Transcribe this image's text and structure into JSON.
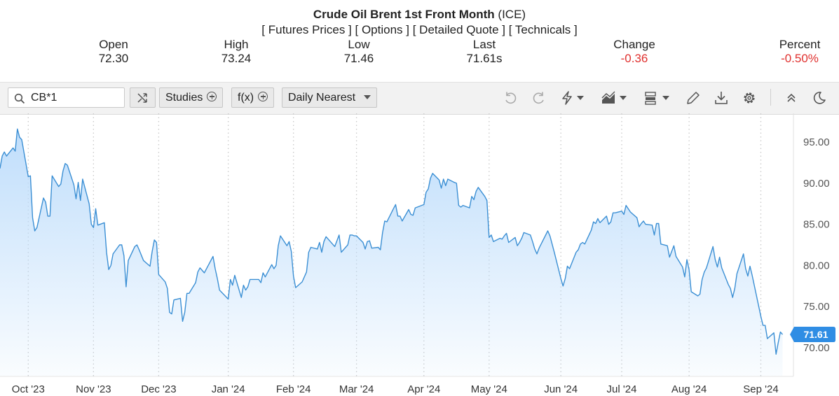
{
  "header": {
    "title_bold": "Crude Oil Brent 1st Front Month",
    "title_suffix": "(ICE)",
    "links": [
      "Futures Prices",
      "Options",
      "Detailed Quote",
      "Technicals"
    ]
  },
  "stats": [
    {
      "label": "Open",
      "value": "72.30",
      "negative": false
    },
    {
      "label": "High",
      "value": "73.24",
      "negative": false
    },
    {
      "label": "Low",
      "value": "71.46",
      "negative": false
    },
    {
      "label": "Last",
      "value": "71.61s",
      "negative": false
    },
    {
      "label": "Change",
      "value": "-0.36",
      "negative": true
    },
    {
      "label": "Percent",
      "value": "-0.50%",
      "negative": true
    }
  ],
  "toolbar": {
    "symbol": "CB*1",
    "studies_label": "Studies",
    "fx_label": "f(x)",
    "interval_label": "Daily Nearest",
    "icons": [
      "undo-icon",
      "redo-icon",
      "lightning-icon",
      "chart-type-icon",
      "template-icon",
      "pencil-icon",
      "download-icon",
      "settings-icon",
      "collapse-icon",
      "dark-mode-icon"
    ]
  },
  "colors": {
    "line": "#3b8fd4",
    "fill": "#cfe5fa",
    "last_badge": "#2f8de4",
    "negative": "#e0312f"
  },
  "chart_data": {
    "type": "area",
    "y_axis_side": "right",
    "ylim": [
      66.5,
      98.5
    ],
    "yticks": [
      70,
      75,
      80,
      85,
      90,
      95
    ],
    "ytick_labels": [
      "70.00",
      "75.00",
      "80.00",
      "85.00",
      "90.00",
      "95.00"
    ],
    "xlim": [
      "2023-09-19",
      "2024-09-18"
    ],
    "xticks": [
      {
        "date": "2023-10-02",
        "label": "Oct '23"
      },
      {
        "date": "2023-11-01",
        "label": "Nov '23"
      },
      {
        "date": "2023-12-01",
        "label": "Dec '23"
      },
      {
        "date": "2024-01-02",
        "label": "Jan '24"
      },
      {
        "date": "2024-02-01",
        "label": "Feb '24"
      },
      {
        "date": "2024-03-01",
        "label": "Mar '24"
      },
      {
        "date": "2024-04-01",
        "label": "Apr '24"
      },
      {
        "date": "2024-05-01",
        "label": "May '24"
      },
      {
        "date": "2024-06-03",
        "label": "Jun '24"
      },
      {
        "date": "2024-07-01",
        "label": "Jul '24"
      },
      {
        "date": "2024-08-01",
        "label": "Aug '24"
      },
      {
        "date": "2024-09-03",
        "label": "Sep '24"
      }
    ],
    "grid": "vertical-dotted",
    "last_value_label": "71.61",
    "series": [
      {
        "points": [
          [
            "2023-09-19",
            91.8
          ],
          [
            "2023-09-20",
            93.3
          ],
          [
            "2023-09-21",
            93.8
          ],
          [
            "2023-09-22",
            93.3
          ],
          [
            "2023-09-25",
            94.3
          ],
          [
            "2023-09-26",
            93.9
          ],
          [
            "2023-09-27",
            96.6
          ],
          [
            "2023-09-28",
            95.6
          ],
          [
            "2023-09-29",
            95.3
          ],
          [
            "2023-10-02",
            90.8
          ],
          [
            "2023-10-03",
            90.9
          ],
          [
            "2023-10-04",
            85.8
          ],
          [
            "2023-10-05",
            84.2
          ],
          [
            "2023-10-06",
            84.6
          ],
          [
            "2023-10-09",
            88.2
          ],
          [
            "2023-10-10",
            87.7
          ],
          [
            "2023-10-11",
            86.0
          ],
          [
            "2023-10-12",
            86.0
          ],
          [
            "2023-10-13",
            90.9
          ],
          [
            "2023-10-16",
            89.6
          ],
          [
            "2023-10-17",
            89.9
          ],
          [
            "2023-10-18",
            91.5
          ],
          [
            "2023-10-19",
            92.4
          ],
          [
            "2023-10-20",
            92.2
          ],
          [
            "2023-10-23",
            89.8
          ],
          [
            "2023-10-24",
            88.1
          ],
          [
            "2023-10-25",
            90.1
          ],
          [
            "2023-10-26",
            87.9
          ],
          [
            "2023-10-27",
            90.5
          ],
          [
            "2023-10-30",
            87.5
          ],
          [
            "2023-10-31",
            85.0
          ],
          [
            "2023-11-01",
            84.6
          ],
          [
            "2023-11-02",
            86.9
          ],
          [
            "2023-11-03",
            84.9
          ],
          [
            "2023-11-06",
            85.2
          ],
          [
            "2023-11-07",
            81.6
          ],
          [
            "2023-11-08",
            79.5
          ],
          [
            "2023-11-09",
            80.0
          ],
          [
            "2023-11-10",
            81.4
          ],
          [
            "2023-11-13",
            82.5
          ],
          [
            "2023-11-14",
            82.5
          ],
          [
            "2023-11-15",
            81.2
          ],
          [
            "2023-11-16",
            77.4
          ],
          [
            "2023-11-17",
            80.6
          ],
          [
            "2023-11-20",
            82.3
          ],
          [
            "2023-11-21",
            82.5
          ],
          [
            "2023-11-22",
            81.9
          ],
          [
            "2023-11-24",
            80.6
          ],
          [
            "2023-11-27",
            79.9
          ],
          [
            "2023-11-28",
            81.7
          ],
          [
            "2023-11-29",
            83.1
          ],
          [
            "2023-11-30",
            82.8
          ],
          [
            "2023-12-01",
            78.9
          ],
          [
            "2023-12-04",
            78.0
          ],
          [
            "2023-12-05",
            77.2
          ],
          [
            "2023-12-06",
            74.3
          ],
          [
            "2023-12-07",
            74.1
          ],
          [
            "2023-12-08",
            75.8
          ],
          [
            "2023-12-11",
            76.0
          ],
          [
            "2023-12-12",
            73.2
          ],
          [
            "2023-12-13",
            74.3
          ],
          [
            "2023-12-14",
            76.6
          ],
          [
            "2023-12-15",
            76.6
          ],
          [
            "2023-12-18",
            77.9
          ],
          [
            "2023-12-19",
            79.2
          ],
          [
            "2023-12-20",
            79.7
          ],
          [
            "2023-12-21",
            79.4
          ],
          [
            "2023-12-22",
            79.1
          ],
          [
            "2023-12-26",
            81.1
          ],
          [
            "2023-12-27",
            79.6
          ],
          [
            "2023-12-28",
            78.4
          ],
          [
            "2023-12-29",
            77.0
          ],
          [
            "2024-01-02",
            75.9
          ],
          [
            "2024-01-03",
            78.3
          ],
          [
            "2024-01-04",
            77.6
          ],
          [
            "2024-01-05",
            78.8
          ],
          [
            "2024-01-08",
            76.1
          ],
          [
            "2024-01-09",
            77.6
          ],
          [
            "2024-01-10",
            77.0
          ],
          [
            "2024-01-11",
            77.4
          ],
          [
            "2024-01-12",
            78.3
          ],
          [
            "2024-01-16",
            78.3
          ],
          [
            "2024-01-17",
            77.9
          ],
          [
            "2024-01-18",
            79.1
          ],
          [
            "2024-01-19",
            78.6
          ],
          [
            "2024-01-22",
            80.1
          ],
          [
            "2024-01-23",
            79.6
          ],
          [
            "2024-01-24",
            80.0
          ],
          [
            "2024-01-25",
            82.4
          ],
          [
            "2024-01-26",
            83.6
          ],
          [
            "2024-01-29",
            82.4
          ],
          [
            "2024-01-30",
            82.9
          ],
          [
            "2024-01-31",
            81.7
          ],
          [
            "2024-02-01",
            78.7
          ],
          [
            "2024-02-02",
            77.3
          ],
          [
            "2024-02-05",
            78.0
          ],
          [
            "2024-02-06",
            78.6
          ],
          [
            "2024-02-07",
            79.2
          ],
          [
            "2024-02-08",
            81.6
          ],
          [
            "2024-02-09",
            82.2
          ],
          [
            "2024-02-12",
            82.0
          ],
          [
            "2024-02-13",
            82.8
          ],
          [
            "2024-02-14",
            81.6
          ],
          [
            "2024-02-15",
            82.9
          ],
          [
            "2024-02-16",
            83.5
          ],
          [
            "2024-02-20",
            82.3
          ],
          [
            "2024-02-21",
            83.0
          ],
          [
            "2024-02-22",
            83.7
          ],
          [
            "2024-02-23",
            81.6
          ],
          [
            "2024-02-26",
            82.5
          ],
          [
            "2024-02-27",
            83.7
          ],
          [
            "2024-02-28",
            83.7
          ],
          [
            "2024-02-29",
            83.6
          ],
          [
            "2024-03-01",
            83.6
          ],
          [
            "2024-03-04",
            82.8
          ],
          [
            "2024-03-05",
            82.0
          ],
          [
            "2024-03-06",
            82.9
          ],
          [
            "2024-03-07",
            83.0
          ],
          [
            "2024-03-08",
            82.1
          ],
          [
            "2024-03-11",
            82.2
          ],
          [
            "2024-03-12",
            81.9
          ],
          [
            "2024-03-13",
            84.0
          ],
          [
            "2024-03-14",
            85.4
          ],
          [
            "2024-03-15",
            85.3
          ],
          [
            "2024-03-18",
            86.9
          ],
          [
            "2024-03-19",
            87.4
          ],
          [
            "2024-03-20",
            86.0
          ],
          [
            "2024-03-21",
            86.0
          ],
          [
            "2024-03-22",
            85.4
          ],
          [
            "2024-03-25",
            86.8
          ],
          [
            "2024-03-26",
            86.2
          ],
          [
            "2024-03-27",
            86.1
          ],
          [
            "2024-03-28",
            87.0
          ],
          [
            "2024-04-01",
            87.4
          ],
          [
            "2024-04-02",
            88.9
          ],
          [
            "2024-04-03",
            89.3
          ],
          [
            "2024-04-04",
            90.6
          ],
          [
            "2024-04-05",
            91.2
          ],
          [
            "2024-04-08",
            90.4
          ],
          [
            "2024-04-09",
            89.4
          ],
          [
            "2024-04-10",
            90.5
          ],
          [
            "2024-04-11",
            89.7
          ],
          [
            "2024-04-12",
            90.5
          ],
          [
            "2024-04-15",
            90.1
          ],
          [
            "2024-04-16",
            90.0
          ],
          [
            "2024-04-17",
            87.3
          ],
          [
            "2024-04-18",
            87.1
          ],
          [
            "2024-04-19",
            87.3
          ],
          [
            "2024-04-22",
            87.0
          ],
          [
            "2024-04-23",
            88.4
          ],
          [
            "2024-04-24",
            88.0
          ],
          [
            "2024-04-25",
            89.0
          ],
          [
            "2024-04-26",
            89.5
          ],
          [
            "2024-04-29",
            88.4
          ],
          [
            "2024-04-30",
            87.9
          ],
          [
            "2024-05-01",
            83.4
          ],
          [
            "2024-05-02",
            83.7
          ],
          [
            "2024-05-03",
            82.9
          ],
          [
            "2024-05-06",
            83.3
          ],
          [
            "2024-05-07",
            83.2
          ],
          [
            "2024-05-08",
            83.6
          ],
          [
            "2024-05-09",
            83.9
          ],
          [
            "2024-05-10",
            82.8
          ],
          [
            "2024-05-13",
            83.4
          ],
          [
            "2024-05-14",
            82.4
          ],
          [
            "2024-05-15",
            82.8
          ],
          [
            "2024-05-16",
            83.3
          ],
          [
            "2024-05-17",
            84.0
          ],
          [
            "2024-05-20",
            83.7
          ],
          [
            "2024-05-21",
            82.9
          ],
          [
            "2024-05-22",
            82.0
          ],
          [
            "2024-05-23",
            81.4
          ],
          [
            "2024-05-24",
            82.1
          ],
          [
            "2024-05-28",
            84.2
          ],
          [
            "2024-05-29",
            83.6
          ],
          [
            "2024-05-31",
            81.6
          ],
          [
            "2024-06-03",
            78.4
          ],
          [
            "2024-06-04",
            77.5
          ],
          [
            "2024-06-05",
            78.4
          ],
          [
            "2024-06-06",
            79.9
          ],
          [
            "2024-06-07",
            79.6
          ],
          [
            "2024-06-10",
            81.6
          ],
          [
            "2024-06-11",
            81.9
          ],
          [
            "2024-06-12",
            82.6
          ],
          [
            "2024-06-13",
            82.8
          ],
          [
            "2024-06-14",
            82.6
          ],
          [
            "2024-06-17",
            84.3
          ],
          [
            "2024-06-18",
            85.3
          ],
          [
            "2024-06-19",
            85.1
          ],
          [
            "2024-06-20",
            85.7
          ],
          [
            "2024-06-21",
            85.2
          ],
          [
            "2024-06-24",
            86.0
          ],
          [
            "2024-06-25",
            85.0
          ],
          [
            "2024-06-26",
            85.3
          ],
          [
            "2024-06-27",
            86.4
          ],
          [
            "2024-06-28",
            86.4
          ],
          [
            "2024-07-01",
            86.6
          ],
          [
            "2024-07-02",
            86.2
          ],
          [
            "2024-07-03",
            87.3
          ],
          [
            "2024-07-05",
            86.5
          ],
          [
            "2024-07-08",
            85.8
          ],
          [
            "2024-07-09",
            84.7
          ],
          [
            "2024-07-10",
            85.1
          ],
          [
            "2024-07-11",
            85.4
          ],
          [
            "2024-07-12",
            85.0
          ],
          [
            "2024-07-15",
            84.9
          ],
          [
            "2024-07-16",
            83.7
          ],
          [
            "2024-07-17",
            85.1
          ],
          [
            "2024-07-18",
            85.1
          ],
          [
            "2024-07-19",
            82.6
          ],
          [
            "2024-07-22",
            82.4
          ],
          [
            "2024-07-23",
            81.0
          ],
          [
            "2024-07-24",
            81.7
          ],
          [
            "2024-07-25",
            82.4
          ],
          [
            "2024-07-26",
            81.1
          ],
          [
            "2024-07-29",
            79.8
          ],
          [
            "2024-07-30",
            78.6
          ],
          [
            "2024-07-31",
            80.7
          ],
          [
            "2024-08-01",
            79.5
          ],
          [
            "2024-08-02",
            76.8
          ],
          [
            "2024-08-05",
            76.3
          ],
          [
            "2024-08-06",
            76.5
          ],
          [
            "2024-08-07",
            78.3
          ],
          [
            "2024-08-08",
            79.2
          ],
          [
            "2024-08-09",
            79.7
          ],
          [
            "2024-08-12",
            82.3
          ],
          [
            "2024-08-13",
            80.7
          ],
          [
            "2024-08-14",
            79.8
          ],
          [
            "2024-08-15",
            81.0
          ],
          [
            "2024-08-16",
            79.7
          ],
          [
            "2024-08-19",
            77.7
          ],
          [
            "2024-08-20",
            77.2
          ],
          [
            "2024-08-21",
            76.1
          ],
          [
            "2024-08-22",
            77.2
          ],
          [
            "2024-08-23",
            79.0
          ],
          [
            "2024-08-26",
            81.4
          ],
          [
            "2024-08-27",
            79.6
          ],
          [
            "2024-08-28",
            78.7
          ],
          [
            "2024-08-29",
            79.9
          ],
          [
            "2024-08-30",
            78.8
          ],
          [
            "2024-09-03",
            73.8
          ],
          [
            "2024-09-04",
            72.7
          ],
          [
            "2024-09-05",
            72.7
          ],
          [
            "2024-09-06",
            71.1
          ],
          [
            "2024-09-09",
            71.8
          ],
          [
            "2024-09-10",
            69.2
          ],
          [
            "2024-09-11",
            70.6
          ],
          [
            "2024-09-12",
            71.9
          ],
          [
            "2024-09-13",
            71.6
          ]
        ]
      }
    ]
  }
}
